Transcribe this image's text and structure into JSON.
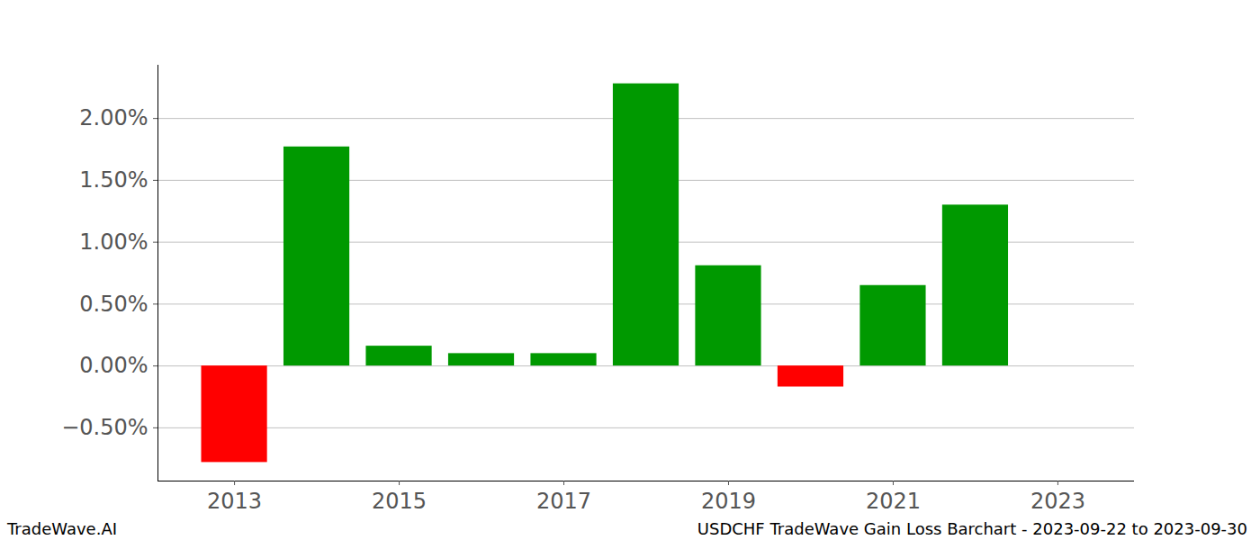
{
  "chart_data": {
    "type": "bar",
    "title": "USDCHF TradeWave Gain Loss Barchart - 2023-09-22 to 2023-09-30",
    "annotations": [
      "TradeWave.AI"
    ],
    "x": [
      2013,
      2014,
      2015,
      2016,
      2017,
      2018,
      2019,
      2020,
      2021,
      2022
    ],
    "values": [
      -0.78,
      1.77,
      0.16,
      0.1,
      0.1,
      2.28,
      0.81,
      -0.17,
      0.65,
      1.3
    ],
    "colors": [
      "#ff0000",
      "#009900",
      "#009900",
      "#009900",
      "#009900",
      "#009900",
      "#009900",
      "#ff0000",
      "#009900",
      "#009900"
    ],
    "xlim": [
      2012.07,
      2023.93
    ],
    "xticks": [
      2013,
      2015,
      2017,
      2019,
      2021,
      2023
    ],
    "ylim": [
      -0.93,
      2.43
    ],
    "yticks": [
      {
        "value": -0.5,
        "label": "−0.50%"
      },
      {
        "value": 0,
        "label": "0.00%"
      },
      {
        "value": 0.5,
        "label": "0.50%"
      },
      {
        "value": 1,
        "label": "1.00%"
      },
      {
        "value": 1.5,
        "label": "1.50%"
      },
      {
        "value": 2,
        "label": "2.00%"
      }
    ],
    "grid": true
  }
}
